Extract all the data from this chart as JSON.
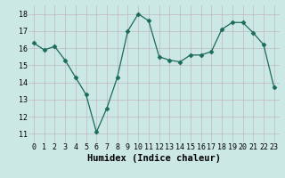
{
  "x": [
    0,
    1,
    2,
    3,
    4,
    5,
    6,
    7,
    8,
    9,
    10,
    11,
    12,
    13,
    14,
    15,
    16,
    17,
    18,
    19,
    20,
    21,
    22,
    23
  ],
  "y": [
    16.3,
    15.9,
    16.1,
    15.3,
    14.3,
    13.3,
    11.1,
    12.5,
    14.3,
    17.0,
    18.0,
    17.6,
    15.5,
    15.3,
    15.2,
    15.6,
    15.6,
    15.8,
    17.1,
    17.5,
    17.5,
    16.9,
    16.2,
    13.7
  ],
  "line_color": "#1a6b5a",
  "marker": "D",
  "marker_size": 2.5,
  "bg_color": "#cce8e4",
  "grid_color": "#c0b8c0",
  "xlabel": "Humidex (Indice chaleur)",
  "ylim": [
    10.5,
    18.5
  ],
  "yticks": [
    11,
    12,
    13,
    14,
    15,
    16,
    17,
    18
  ],
  "xticks": [
    0,
    1,
    2,
    3,
    4,
    5,
    6,
    7,
    8,
    9,
    10,
    11,
    12,
    13,
    14,
    15,
    16,
    17,
    18,
    19,
    20,
    21,
    22,
    23
  ],
  "tick_label_fontsize": 6.0,
  "xlabel_fontsize": 7.5
}
